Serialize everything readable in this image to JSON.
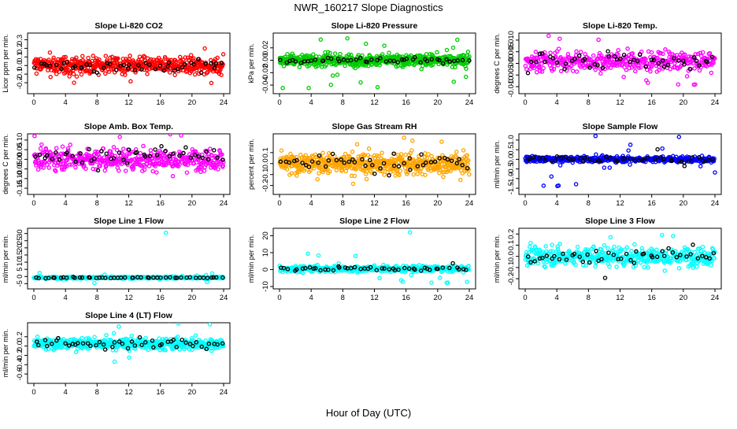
{
  "figure": {
    "title": "NWR_160217  Slope Diagnostics",
    "xlabel": "Hour of Day (UTC)"
  },
  "chart_data": [
    {
      "type": "scatter",
      "title": "Slope Li-820 CO2",
      "ylabel": "Licor ppm per min.",
      "xlim": [
        0,
        24
      ],
      "ylim": [
        -0.3,
        0.35
      ],
      "xticks": [
        0,
        4,
        8,
        12,
        16,
        20,
        24
      ],
      "yticks": [
        -0.2,
        -0.1,
        0.0,
        0.1,
        0.2,
        0.3
      ],
      "ytick_labels": [
        "-0.2",
        "-0.1",
        "0.0",
        "0.1",
        "0.2",
        "0.3"
      ],
      "series": [
        {
          "color": "#ff0000",
          "n": 520,
          "center": 0.0,
          "spread": 0.08,
          "tail": 0.22
        },
        {
          "color": "#000000",
          "n": 48,
          "center": 0.0,
          "spread": 0.06,
          "tail": 0.12
        }
      ]
    },
    {
      "type": "scatter",
      "title": "Slope Li-820 Pressure",
      "ylabel": "kPa per min.",
      "xlim": [
        0,
        24
      ],
      "ylim": [
        -0.05,
        0.04
      ],
      "xticks": [
        0,
        4,
        8,
        12,
        16,
        20,
        24
      ],
      "yticks": [
        -0.04,
        -0.02,
        0.0,
        0.02
      ],
      "ytick_labels": [
        "-0.04",
        "-0.02",
        "0.00",
        "0.02"
      ],
      "series": [
        {
          "color": "#00cc00",
          "n": 620,
          "center": 0.0,
          "spread": 0.008,
          "tail": 0.045
        },
        {
          "color": "#000000",
          "n": 48,
          "center": 0.0,
          "spread": 0.004,
          "tail": 0.008
        }
      ]
    },
    {
      "type": "scatter",
      "title": "Slope Li-820 Temp.",
      "ylabel": "degrees C per min.",
      "xlim": [
        0,
        24
      ],
      "ylim": [
        -0.012,
        0.012
      ],
      "xticks": [
        0,
        4,
        8,
        12,
        16,
        20,
        24
      ],
      "yticks": [
        -0.01,
        -0.005,
        0.0,
        0.005,
        0.01
      ],
      "ytick_labels": [
        "-0.010",
        "-0.005",
        "0.000",
        "0.005",
        "0.010"
      ],
      "series": [
        {
          "color": "#ff00ff",
          "n": 420,
          "center": 0.001,
          "spread": 0.0035,
          "tail": 0.011
        },
        {
          "color": "#000000",
          "n": 48,
          "center": 0.001,
          "spread": 0.003,
          "tail": 0.006
        }
      ]
    },
    {
      "type": "scatter",
      "title": "Slope Amb. Box Temp.",
      "ylabel": "degrees C per min.",
      "xlim": [
        0,
        24
      ],
      "ylim": [
        -0.17,
        0.12
      ],
      "xticks": [
        0,
        4,
        8,
        12,
        16,
        20,
        24
      ],
      "yticks": [
        -0.15,
        -0.1,
        -0.05,
        0.0,
        0.05,
        0.1
      ],
      "ytick_labels": [
        "-0.15",
        "-0.10",
        "-0.05",
        "0.00",
        "0.05",
        "0.10"
      ],
      "series": [
        {
          "color": "#ff00ff",
          "n": 470,
          "center": 0.0,
          "spread": 0.045,
          "tail": 0.15
        },
        {
          "color": "#000000",
          "n": 48,
          "center": 0.02,
          "spread": 0.04,
          "tail": 0.08
        }
      ]
    },
    {
      "type": "scatter",
      "title": "Slope Gas Stream RH",
      "ylabel": "percent per min.",
      "xlim": [
        0,
        24
      ],
      "ylim": [
        -0.26,
        0.25
      ],
      "xticks": [
        0,
        4,
        8,
        12,
        16,
        20,
        24
      ],
      "yticks": [
        -0.2,
        -0.1,
        0.0,
        0.1
      ],
      "ytick_labels": [
        "-0.2",
        "-0.1",
        "0.0",
        "0.1"
      ],
      "series": [
        {
          "color": "#ffa500",
          "n": 560,
          "center": 0.0,
          "spread": 0.08,
          "tail": 0.24
        },
        {
          "color": "#000000",
          "n": 48,
          "center": 0.02,
          "spread": 0.06,
          "tail": 0.15
        }
      ]
    },
    {
      "type": "scatter",
      "title": "Slope Sample Flow",
      "ylabel": "ml/min per min.",
      "xlim": [
        0,
        24
      ],
      "ylim": [
        -1.7,
        1.2
      ],
      "xticks": [
        0,
        4,
        8,
        12,
        16,
        20,
        24
      ],
      "yticks": [
        -1.5,
        -1.0,
        -0.5,
        0.0,
        0.5,
        1.0
      ],
      "ytick_labels": [
        "-1.5",
        "-1.0",
        "-0.5",
        "0.0",
        "0.5",
        "1.0"
      ],
      "series": [
        {
          "color": "#0000ff",
          "n": 480,
          "center": 0.0,
          "spread": 0.12,
          "tail": 1.5
        },
        {
          "color": "#000000",
          "n": 48,
          "center": 0.0,
          "spread": 0.15,
          "tail": 0.6
        }
      ]
    },
    {
      "type": "scatter",
      "title": "Slope Line 1 Flow",
      "ylabel": "ml/min per min.",
      "xlim": [
        0,
        24
      ],
      "ylim": [
        -7,
        32
      ],
      "xticks": [
        0,
        4,
        8,
        12,
        16,
        20,
        24
      ],
      "yticks": [
        -5,
        0,
        5,
        10,
        15,
        20,
        25,
        30
      ],
      "ytick_labels": [
        "-5",
        "0",
        "5",
        "10",
        "15",
        "20",
        "25",
        "30"
      ],
      "series": [
        {
          "color": "#00ffff",
          "n": 420,
          "center": -0.8,
          "spread": 0.6,
          "tail": 4
        },
        {
          "color": "#000000",
          "n": 48,
          "center": -0.8,
          "spread": 0.3,
          "tail": 0.8
        }
      ],
      "outliers": [
        {
          "x": 16.7,
          "y": 30.5,
          "color": "#00ffff"
        }
      ]
    },
    {
      "type": "scatter",
      "title": "Slope Line 2 Flow",
      "ylabel": "ml/min per min.",
      "xlim": [
        0,
        24
      ],
      "ylim": [
        -10,
        23
      ],
      "xticks": [
        0,
        4,
        8,
        12,
        16,
        20,
        24
      ],
      "yticks": [
        -10,
        0,
        10,
        20
      ],
      "ytick_labels": [
        "-10",
        "0",
        "10",
        "20"
      ],
      "series": [
        {
          "color": "#00ffff",
          "n": 440,
          "center": 0.5,
          "spread": 1.5,
          "tail": 9
        },
        {
          "color": "#000000",
          "n": 48,
          "center": 0.5,
          "spread": 1.0,
          "tail": 4
        }
      ],
      "outliers": [
        {
          "x": 16.5,
          "y": 22,
          "color": "#00ffff"
        }
      ]
    },
    {
      "type": "scatter",
      "title": "Slope Line 3 Flow",
      "ylabel": "ml/min per min.",
      "xlim": [
        0,
        24
      ],
      "ylim": [
        -0.27,
        0.23
      ],
      "xticks": [
        0,
        4,
        8,
        12,
        16,
        20,
        24
      ],
      "yticks": [
        -0.2,
        -0.1,
        0.0,
        0.1,
        0.2
      ],
      "ytick_labels": [
        "-0.2",
        "-0.1",
        "0.0",
        "0.1",
        "0.2"
      ],
      "series": [
        {
          "color": "#00ffff",
          "n": 460,
          "center": 0.0,
          "spread": 0.07,
          "tail": 0.22
        },
        {
          "color": "#000000",
          "n": 48,
          "center": 0.0,
          "spread": 0.06,
          "tail": 0.2
        }
      ]
    },
    {
      "type": "scatter",
      "title": "Slope Line 4 (LT) Flow",
      "ylabel": "ml/min per min.",
      "xlim": [
        0,
        24
      ],
      "ylim": [
        -0.75,
        0.45
      ],
      "xticks": [
        0,
        4,
        8,
        12,
        16,
        20,
        24
      ],
      "yticks": [
        -0.6,
        -0.4,
        -0.2,
        0.0,
        0.2
      ],
      "ytick_labels": [
        "-0.6",
        "-0.4",
        "-0.2",
        "0.0",
        "0.2"
      ],
      "series": [
        {
          "color": "#00ffff",
          "n": 520,
          "center": 0.05,
          "spread": 0.1,
          "tail": 0.5
        },
        {
          "color": "#000000",
          "n": 48,
          "center": 0.05,
          "spread": 0.09,
          "tail": 0.2
        }
      ]
    }
  ]
}
